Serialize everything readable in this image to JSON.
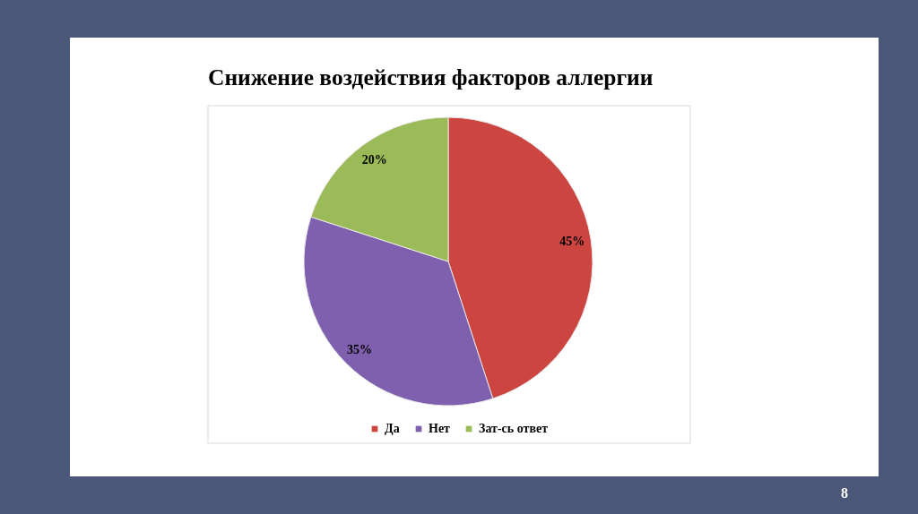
{
  "chart_data": {
    "type": "pie",
    "title": "Снижение воздействия факторов аллергии",
    "categories": [
      "Да",
      "Нет",
      "Зат-сь ответ"
    ],
    "values": [
      45,
      35,
      20
    ],
    "colors": [
      "#cc4541",
      "#7f60ae",
      "#9bbb59"
    ],
    "value_labels": [
      "45%",
      "35%",
      "20%"
    ],
    "legend": "bottom",
    "annotations": [
      "8"
    ]
  }
}
